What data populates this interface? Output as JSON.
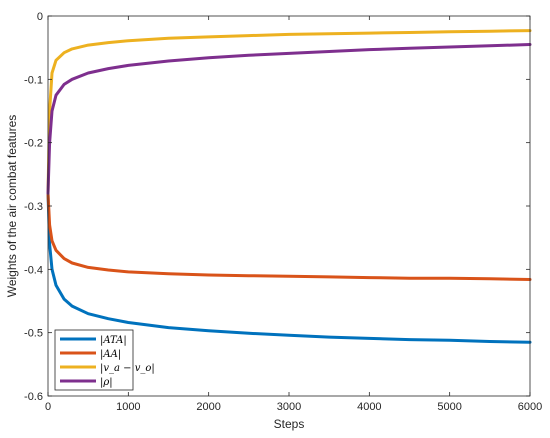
{
  "chart_data": {
    "type": "line",
    "xlabel": "Steps",
    "ylabel": "Weights of the air combat features",
    "xlim": [
      0,
      6000
    ],
    "ylim": [
      -0.6,
      0
    ],
    "xticks": [
      0,
      1000,
      2000,
      3000,
      4000,
      5000,
      6000
    ],
    "yticks": [
      0,
      -0.1,
      -0.2,
      -0.3,
      -0.4,
      -0.5,
      -0.6
    ],
    "xtick_labels": [
      "0",
      "1000",
      "2000",
      "3000",
      "4000",
      "5000",
      "6000"
    ],
    "ytick_labels": [
      "0",
      "-0.1",
      "-0.2",
      "-0.3",
      "-0.4",
      "-0.5",
      "-0.6"
    ],
    "grid": false,
    "legend_position": "bottom-left",
    "x": [
      0,
      20,
      50,
      100,
      200,
      300,
      500,
      750,
      1000,
      1500,
      2000,
      2500,
      3000,
      3500,
      4000,
      4500,
      5000,
      5500,
      6000
    ],
    "series": [
      {
        "name": "|ATA|",
        "color": "#0072BD",
        "values": [
          -0.28,
          -0.36,
          -0.4,
          -0.425,
          -0.447,
          -0.458,
          -0.47,
          -0.478,
          -0.484,
          -0.492,
          -0.497,
          -0.501,
          -0.504,
          -0.507,
          -0.509,
          -0.511,
          -0.512,
          -0.514,
          -0.515
        ]
      },
      {
        "name": "|AA|",
        "color": "#D95319",
        "values": [
          -0.28,
          -0.33,
          -0.355,
          -0.37,
          -0.383,
          -0.39,
          -0.397,
          -0.401,
          -0.404,
          -0.407,
          -0.409,
          -0.41,
          -0.411,
          -0.412,
          -0.413,
          -0.414,
          -0.414,
          -0.415,
          -0.416
        ]
      },
      {
        "name": "|v_a − v_o|",
        "color": "#EDB120",
        "values": [
          -0.28,
          -0.15,
          -0.09,
          -0.07,
          -0.058,
          -0.052,
          -0.046,
          -0.042,
          -0.039,
          -0.035,
          -0.033,
          -0.031,
          -0.029,
          -0.028,
          -0.027,
          -0.026,
          -0.025,
          -0.024,
          -0.023
        ]
      },
      {
        "name": "|ρ|",
        "color": "#7E2F8E",
        "values": [
          -0.28,
          -0.2,
          -0.15,
          -0.125,
          -0.108,
          -0.1,
          -0.09,
          -0.083,
          -0.078,
          -0.071,
          -0.066,
          -0.062,
          -0.059,
          -0.056,
          -0.053,
          -0.051,
          -0.049,
          -0.047,
          -0.045
        ]
      }
    ]
  }
}
